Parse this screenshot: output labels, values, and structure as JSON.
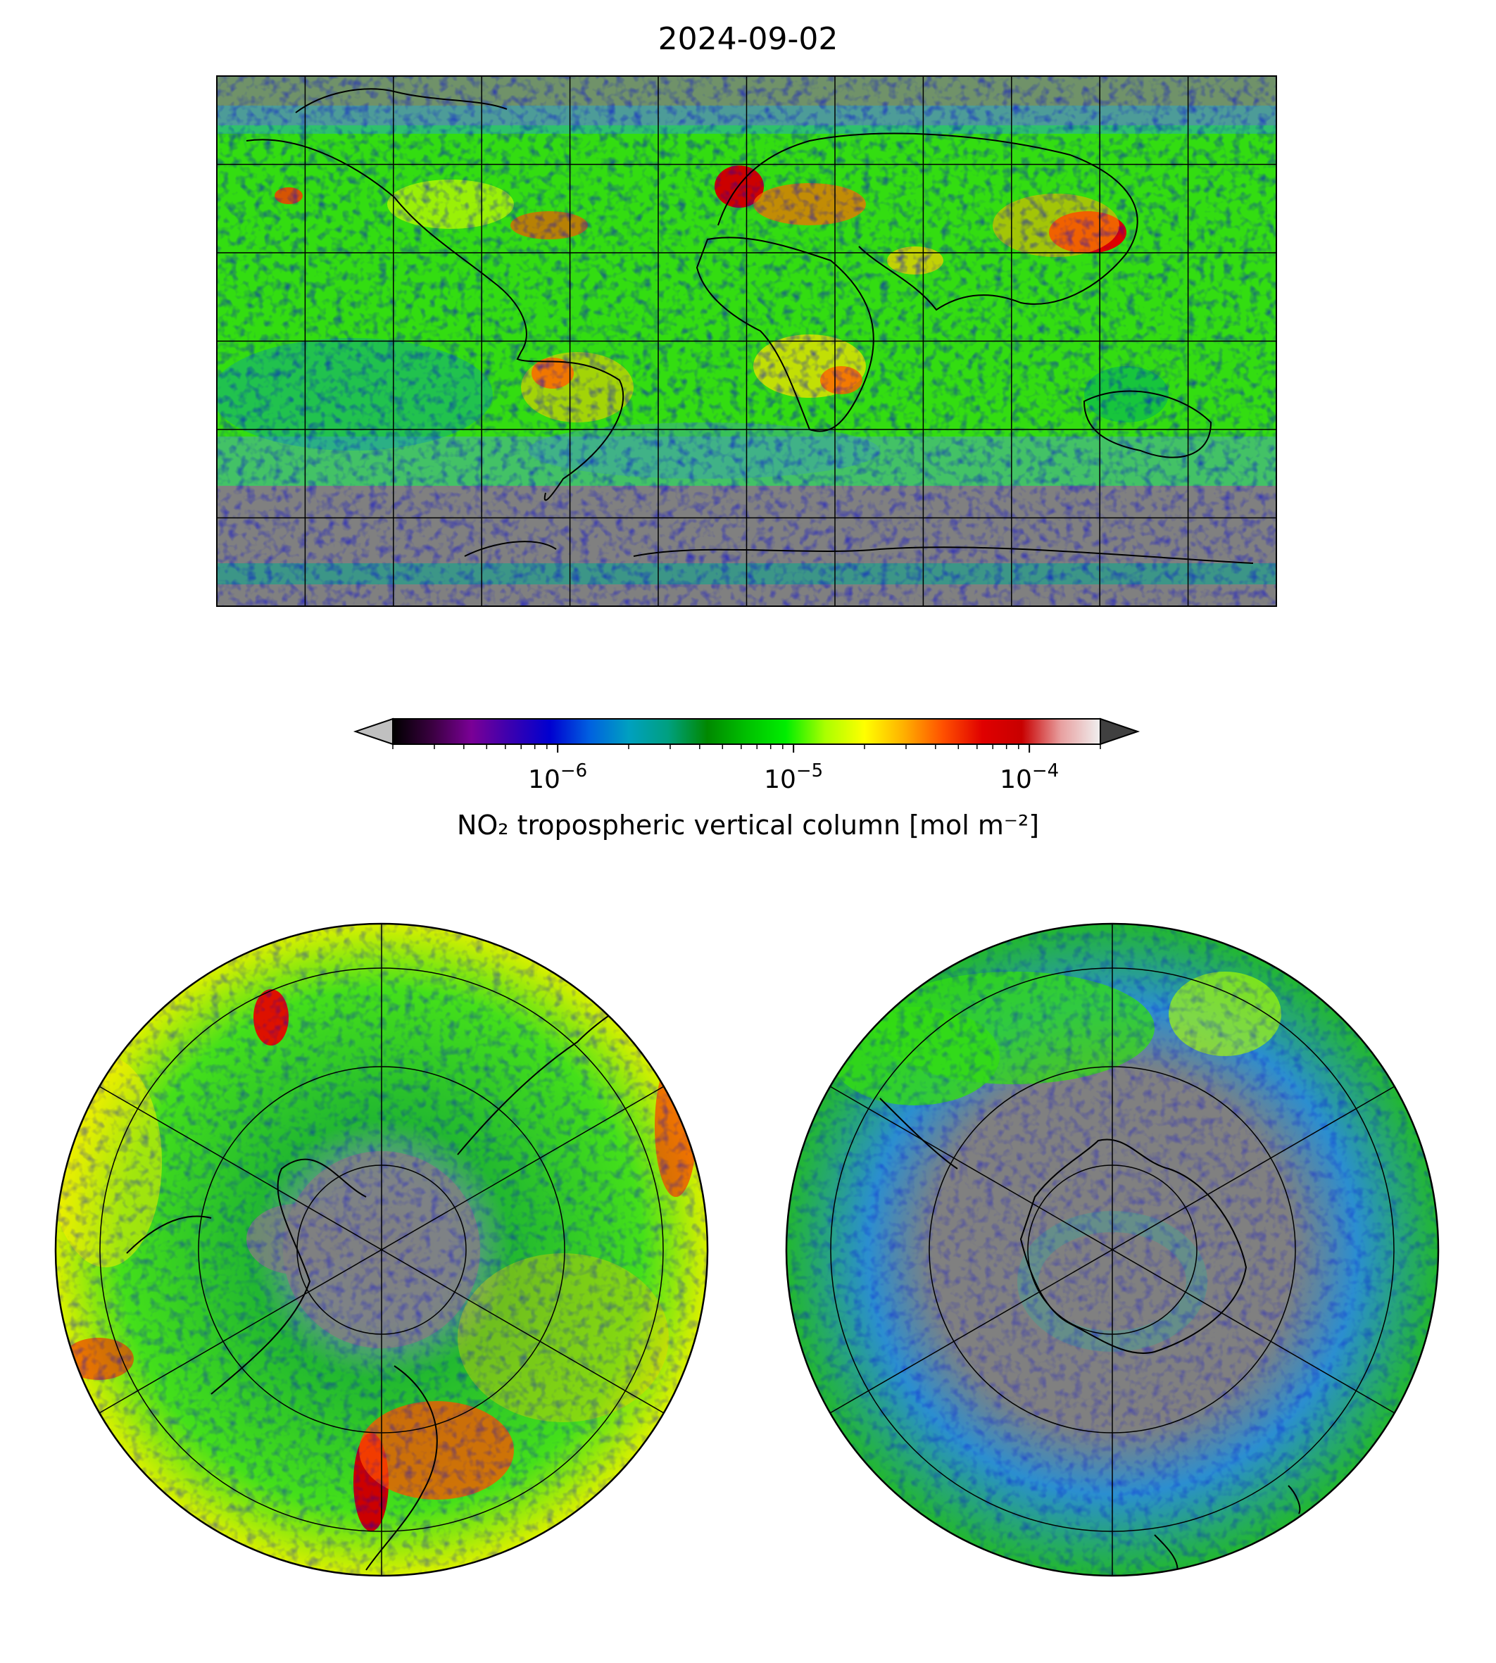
{
  "title": "2024-09-02",
  "colorbar": {
    "label": "NO₂ tropospheric vertical column [mol m⁻²]",
    "scale": "log",
    "range": [
      2e-07,
      0.0002
    ],
    "ticks": [
      {
        "value": 1e-06,
        "base": "10",
        "exp": "−6"
      },
      {
        "value": 1e-05,
        "base": "10",
        "exp": "−5"
      },
      {
        "value": 0.0001,
        "base": "10",
        "exp": "−4"
      }
    ],
    "extend_min_color": "#c0c0c0",
    "extend_max_color": "#404040",
    "colormap": [
      "#000000",
      "#3a0040",
      "#7a0096",
      "#3a00b0",
      "#0000d0",
      "#0060e0",
      "#00a0c0",
      "#00a080",
      "#008800",
      "#00c000",
      "#00ee00",
      "#aaff00",
      "#ffff00",
      "#ffb000",
      "#ff5000",
      "#e00000",
      "#c80000",
      "#e8a0a0",
      "#f0f0f0"
    ]
  },
  "maps": {
    "background_color": "#808080",
    "dominant_color": "#33dd11",
    "projections": [
      "plate-carree",
      "north-polar-stereographic",
      "south-polar-stereographic"
    ]
  }
}
